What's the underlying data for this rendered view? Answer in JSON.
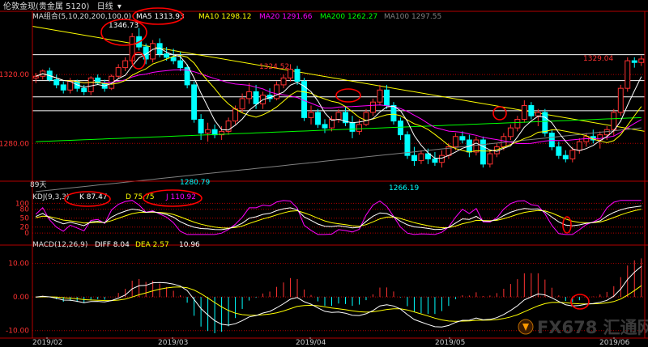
{
  "window": {
    "title": "伦敦金现(贵金属 5120)",
    "period": "日线",
    "period_arrow": "▾"
  },
  "watermark": {
    "text": "FX678 汇通网"
  },
  "colors": {
    "background": "#000000",
    "up": "#ff3232",
    "down": "#00ffff",
    "ma5": "#ffffff",
    "ma10": "#ffff00",
    "ma20": "#ff00ff",
    "ma200": "#00ff00",
    "ma100": "#808080",
    "annotation": "#ff0000",
    "grid": "#b40000",
    "trendline": "#ffff00"
  },
  "chart_data": [
    {
      "type": "candlestick",
      "panel": "price",
      "indicator_label": "MA组合(5,10,20,200,100,0)",
      "legend": [
        {
          "name": "MA5",
          "value": "1313.93"
        },
        {
          "name": "MA10",
          "value": "1298.12"
        },
        {
          "name": "MA20",
          "value": "1291.66"
        },
        {
          "name": "MA200",
          "value": "1262.27"
        },
        {
          "name": "MA100",
          "value": "1297.55"
        }
      ],
      "y_ticks": [
        "1320.00",
        "1280.00"
      ],
      "ylim": [
        1259,
        1352
      ],
      "x_ticks": [
        "2019/02",
        "2019/03",
        "2019/04",
        "2019/05",
        "2019/06"
      ],
      "annotations": [
        "1346.73",
        "1324.52",
        "1280.79",
        "1266.19",
        "1329.04"
      ],
      "bars_label": "89天",
      "horizontal_levels": [
        1331.5,
        1316.5,
        1307,
        1299
      ],
      "candles": [
        [
          1318,
          1321,
          1315,
          1319
        ],
        [
          1319,
          1323,
          1317,
          1322
        ],
        [
          1322,
          1324,
          1316,
          1317
        ],
        [
          1317,
          1320,
          1312,
          1314
        ],
        [
          1314,
          1316,
          1309,
          1311
        ],
        [
          1311,
          1318,
          1309,
          1316
        ],
        [
          1316,
          1317,
          1310,
          1312
        ],
        [
          1312,
          1314,
          1308,
          1310
        ],
        [
          1310,
          1319,
          1308,
          1318
        ],
        [
          1318,
          1320,
          1314,
          1315
        ],
        [
          1315,
          1317,
          1310,
          1312
        ],
        [
          1312,
          1320,
          1311,
          1319
        ],
        [
          1319,
          1326,
          1318,
          1324
        ],
        [
          1324,
          1330,
          1322,
          1328
        ],
        [
          1328,
          1344,
          1326,
          1342
        ],
        [
          1342,
          1347,
          1334,
          1336
        ],
        [
          1336,
          1338,
          1326,
          1329
        ],
        [
          1329,
          1340,
          1327,
          1338
        ],
        [
          1338,
          1341,
          1330,
          1332
        ],
        [
          1332,
          1336,
          1328,
          1330
        ],
        [
          1330,
          1335,
          1326,
          1328
        ],
        [
          1328,
          1333,
          1322,
          1324
        ],
        [
          1324,
          1326,
          1312,
          1314
        ],
        [
          1314,
          1316,
          1292,
          1294
        ],
        [
          1294,
          1297,
          1282,
          1286
        ],
        [
          1286,
          1292,
          1281,
          1288
        ],
        [
          1288,
          1291,
          1283,
          1285
        ],
        [
          1285,
          1290,
          1282,
          1287
        ],
        [
          1287,
          1295,
          1285,
          1293
        ],
        [
          1293,
          1302,
          1291,
          1300
        ],
        [
          1300,
          1309,
          1298,
          1306
        ],
        [
          1306,
          1315,
          1303,
          1310
        ],
        [
          1310,
          1314,
          1300,
          1303
        ],
        [
          1303,
          1310,
          1300,
          1308
        ],
        [
          1308,
          1312,
          1304,
          1306
        ],
        [
          1306,
          1316,
          1305,
          1314
        ],
        [
          1314,
          1320,
          1312,
          1318
        ],
        [
          1318,
          1326,
          1316,
          1323
        ],
        [
          1323,
          1325,
          1314,
          1316
        ],
        [
          1316,
          1318,
          1293,
          1295
        ],
        [
          1295,
          1302,
          1291,
          1298
        ],
        [
          1298,
          1300,
          1289,
          1291
        ],
        [
          1291,
          1294,
          1286,
          1289
        ],
        [
          1289,
          1296,
          1287,
          1294
        ],
        [
          1294,
          1300,
          1292,
          1298
        ],
        [
          1298,
          1301,
          1290,
          1292
        ],
        [
          1292,
          1296,
          1283,
          1287
        ],
        [
          1287,
          1294,
          1285,
          1291
        ],
        [
          1291,
          1300,
          1290,
          1298
        ],
        [
          1298,
          1306,
          1296,
          1304
        ],
        [
          1304,
          1314,
          1302,
          1311
        ],
        [
          1311,
          1314,
          1300,
          1302
        ],
        [
          1302,
          1304,
          1291,
          1293
        ],
        [
          1293,
          1295,
          1282,
          1285
        ],
        [
          1285,
          1287,
          1271,
          1273
        ],
        [
          1273,
          1278,
          1267,
          1270
        ],
        [
          1270,
          1276,
          1268,
          1274
        ],
        [
          1274,
          1277,
          1268,
          1271
        ],
        [
          1271,
          1275,
          1267,
          1269
        ],
        [
          1269,
          1276,
          1266,
          1273
        ],
        [
          1273,
          1280,
          1271,
          1278
        ],
        [
          1278,
          1286,
          1276,
          1284
        ],
        [
          1284,
          1287,
          1280,
          1282
        ],
        [
          1282,
          1285,
          1272,
          1275
        ],
        [
          1275,
          1284,
          1273,
          1282
        ],
        [
          1282,
          1284,
          1266,
          1268
        ],
        [
          1268,
          1276,
          1266,
          1274
        ],
        [
          1274,
          1280,
          1272,
          1278
        ],
        [
          1278,
          1286,
          1276,
          1284
        ],
        [
          1284,
          1291,
          1282,
          1289
        ],
        [
          1289,
          1296,
          1287,
          1294
        ],
        [
          1294,
          1305,
          1292,
          1302
        ],
        [
          1302,
          1304,
          1294,
          1296
        ],
        [
          1296,
          1300,
          1290,
          1298
        ],
        [
          1298,
          1300,
          1284,
          1286
        ],
        [
          1286,
          1288,
          1276,
          1278
        ],
        [
          1278,
          1281,
          1271,
          1273
        ],
        [
          1273,
          1276,
          1269,
          1271
        ],
        [
          1271,
          1278,
          1269,
          1276
        ],
        [
          1276,
          1283,
          1274,
          1281
        ],
        [
          1281,
          1286,
          1278,
          1284
        ],
        [
          1284,
          1288,
          1280,
          1282
        ],
        [
          1282,
          1287,
          1277,
          1285
        ],
        [
          1285,
          1290,
          1282,
          1288
        ],
        [
          1288,
          1300,
          1284,
          1298
        ],
        [
          1298,
          1314,
          1296,
          1312
        ],
        [
          1312,
          1330,
          1310,
          1328
        ],
        [
          1328,
          1330,
          1324,
          1327
        ],
        [
          1327,
          1331,
          1325,
          1329
        ]
      ]
    },
    {
      "type": "line",
      "panel": "kdj",
      "indicator_label": "KDJ(9,3,3)",
      "legend": [
        {
          "name": "K",
          "value": "87.47"
        },
        {
          "name": "D",
          "value": "75.75"
        },
        {
          "name": "J",
          "value": "110.92"
        }
      ],
      "y_ticks": [
        "100",
        "80",
        "50",
        "20",
        "0"
      ],
      "ylim": [
        -8,
        112
      ]
    },
    {
      "type": "line",
      "panel": "macd",
      "indicator_label": "MACD(12,26,9)",
      "legend": [
        {
          "name": "DIFF",
          "value": "8.04"
        },
        {
          "name": "DEA",
          "value": "2.57"
        },
        {
          "name": "MACD",
          "value": "10.96"
        }
      ],
      "y_ticks": [
        "10.00",
        "0.00",
        "-10.00"
      ],
      "ylim": [
        -12,
        14
      ]
    }
  ]
}
